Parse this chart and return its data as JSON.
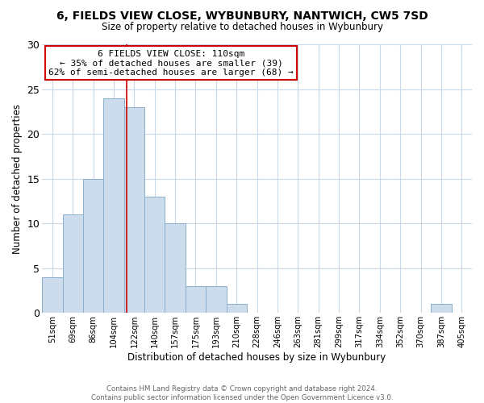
{
  "title": "6, FIELDS VIEW CLOSE, WYBUNBURY, NANTWICH, CW5 7SD",
  "subtitle": "Size of property relative to detached houses in Wybunbury",
  "xlabel": "Distribution of detached houses by size in Wybunbury",
  "ylabel": "Number of detached properties",
  "bar_labels": [
    "51sqm",
    "69sqm",
    "86sqm",
    "104sqm",
    "122sqm",
    "140sqm",
    "157sqm",
    "175sqm",
    "193sqm",
    "210sqm",
    "228sqm",
    "246sqm",
    "263sqm",
    "281sqm",
    "299sqm",
    "317sqm",
    "334sqm",
    "352sqm",
    "370sqm",
    "387sqm",
    "405sqm"
  ],
  "bar_values": [
    4,
    11,
    15,
    24,
    23,
    13,
    10,
    3,
    3,
    1,
    0,
    0,
    0,
    0,
    0,
    0,
    0,
    0,
    0,
    1,
    0
  ],
  "bar_color": "#ccdcec",
  "bar_edgecolor": "#8ab0cc",
  "ylim": [
    0,
    30
  ],
  "yticks": [
    0,
    5,
    10,
    15,
    20,
    25,
    30
  ],
  "vline_x": 3.64,
  "vline_color": "#cc0000",
  "annotation_title": "6 FIELDS VIEW CLOSE: 110sqm",
  "annotation_line1": "← 35% of detached houses are smaller (39)",
  "annotation_line2": "62% of semi-detached houses are larger (68) →",
  "annotation_box_facecolor": "#ffffff",
  "annotation_box_edgecolor": "#cc0000",
  "footer_line1": "Contains HM Land Registry data © Crown copyright and database right 2024.",
  "footer_line2": "Contains public sector information licensed under the Open Government Licence v3.0.",
  "background_color": "#ffffff",
  "grid_color": "#c8d8e8"
}
